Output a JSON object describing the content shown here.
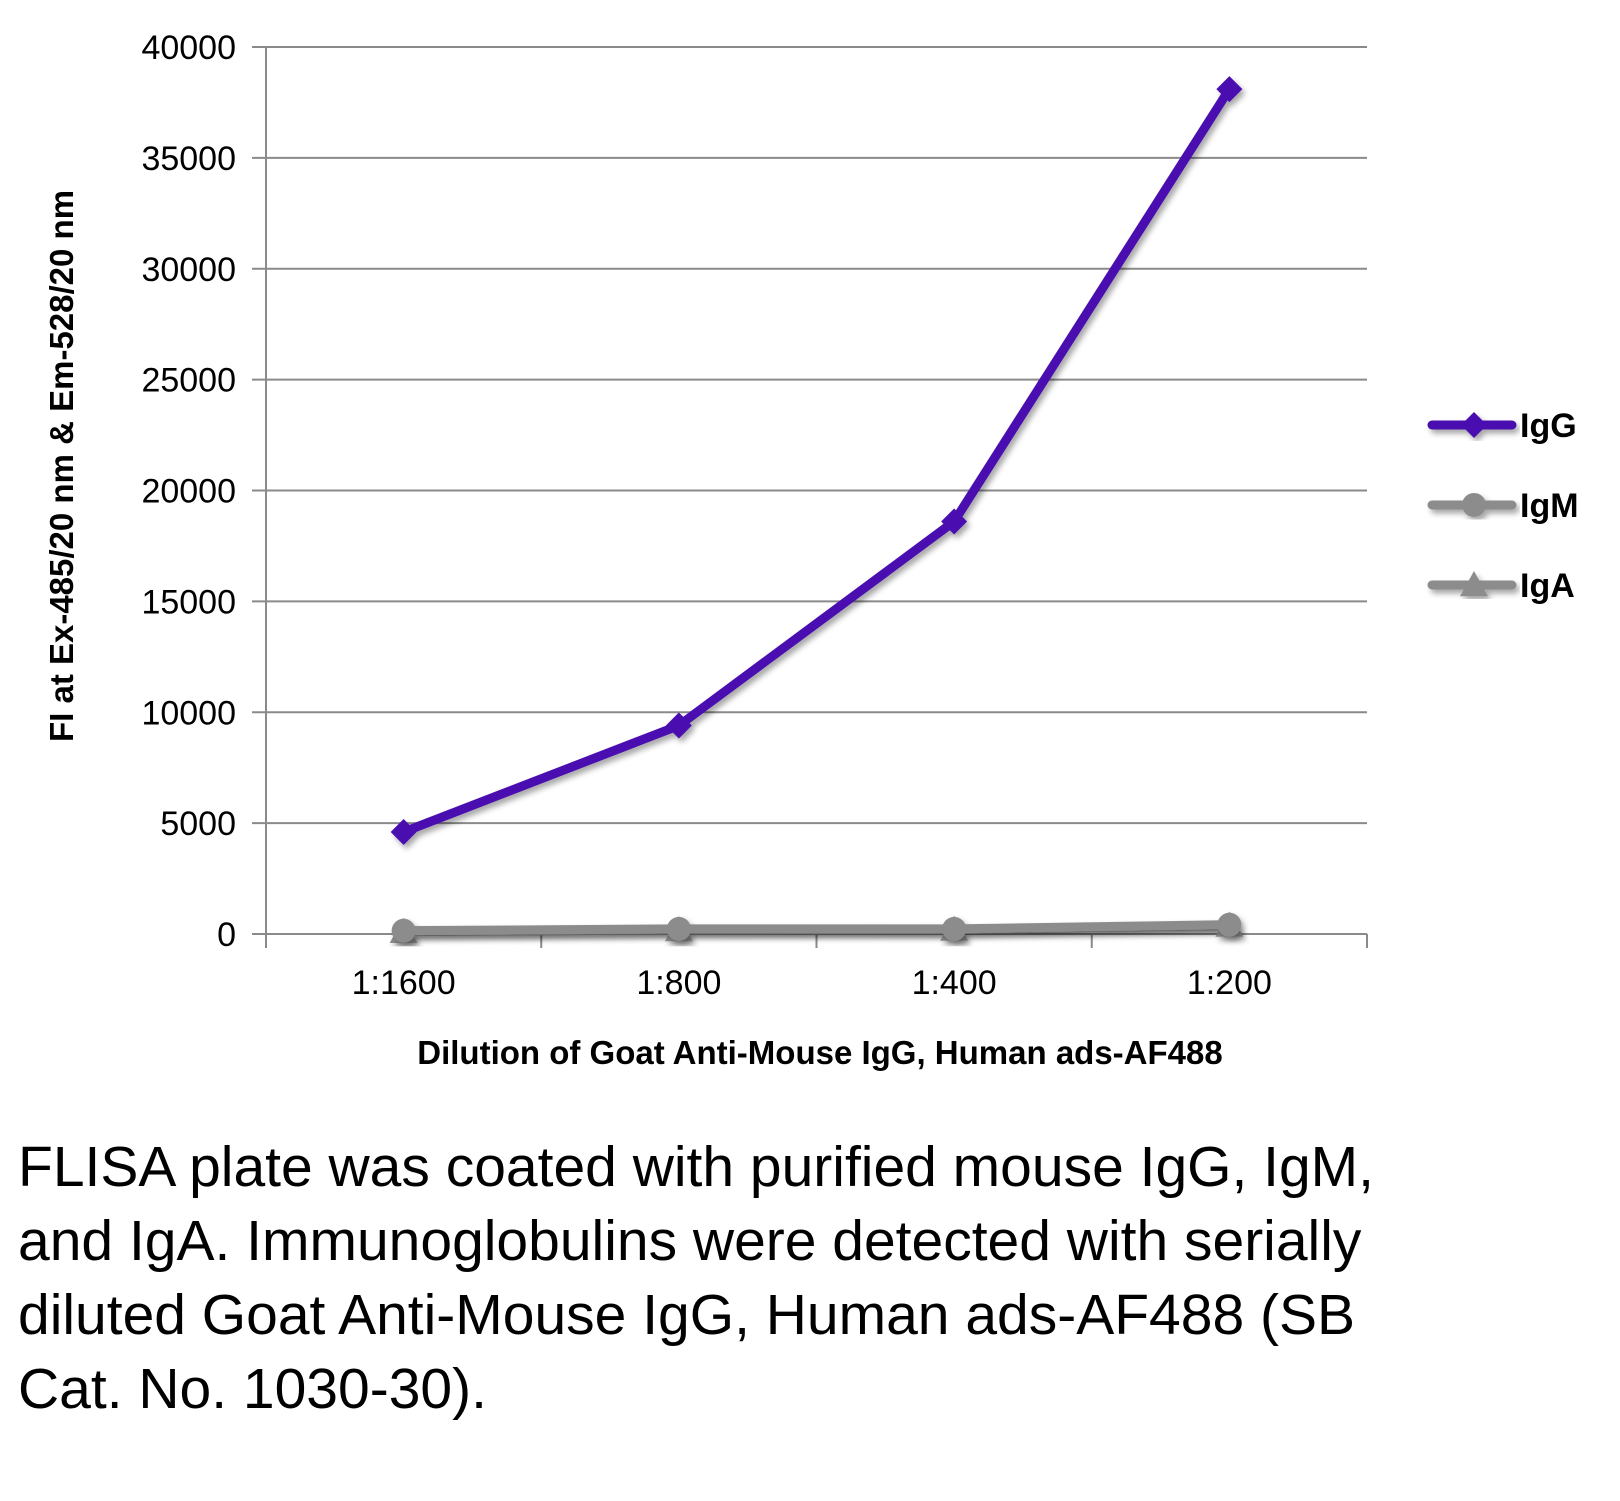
{
  "chart_data": {
    "type": "line",
    "categories": [
      "1:1600",
      "1:800",
      "1:400",
      "1:200"
    ],
    "series": [
      {
        "name": "IgG",
        "values": [
          4600,
          9400,
          18600,
          38100
        ],
        "color": "#4a0fb0",
        "marker": "diamond"
      },
      {
        "name": "IgM",
        "values": [
          150,
          230,
          230,
          420
        ],
        "color": "#8c8c8c",
        "marker": "circle"
      },
      {
        "name": "IgA",
        "values": [
          100,
          180,
          200,
          380
        ],
        "color": "#8c8c8c",
        "marker": "triangle"
      }
    ],
    "ylim": [
      0,
      40000
    ],
    "yticks": [
      0,
      5000,
      10000,
      15000,
      20000,
      25000,
      30000,
      35000,
      40000
    ],
    "ytick_labels": [
      "0",
      "5000",
      "10000",
      "15000",
      "20000",
      "25000",
      "30000",
      "35000",
      "40000"
    ],
    "xlabel": "Dilution of Goat Anti-Mouse IgG, Human ads-AF488",
    "ylabel": "FI at Ex-485/20 nm & Em-528/20 nm",
    "grid": true,
    "legend_position": "right"
  },
  "caption": "FLISA plate was coated with purified mouse IgG, IgM, and IgA.  Immunoglobulins were detected with serially diluted Goat Anti-Mouse IgG, Human ads-AF488 (SB Cat. No. 1030-30)."
}
